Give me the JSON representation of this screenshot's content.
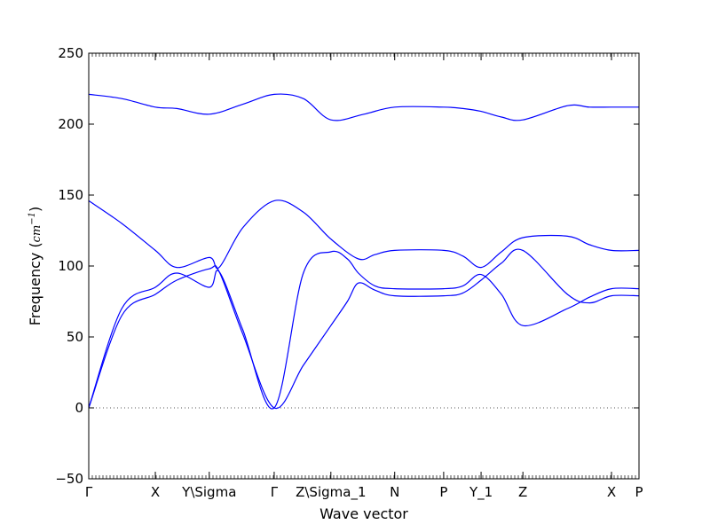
{
  "chart_data": {
    "type": "line",
    "xlabel": "Wave vector",
    "ylabel": {
      "prefix": "Frequency (",
      "unit": "cm",
      "exponent": "−1",
      "suffix": ")"
    },
    "ylim": [
      -50,
      250
    ],
    "yticks": [
      "−50",
      "0",
      "50",
      "100",
      "150",
      "200",
      "250"
    ],
    "ytick_values": [
      -50,
      0,
      50,
      100,
      150,
      200,
      250
    ],
    "xlim": [
      0,
      1
    ],
    "xticks": [
      {
        "label": "Γ",
        "x": 0.0
      },
      {
        "label": "X",
        "x": 0.121
      },
      {
        "label": "Y\\Sigma",
        "x": 0.219
      },
      {
        "label": "Γ",
        "x": 0.337
      },
      {
        "label": "Z\\Sigma_1",
        "x": 0.44
      },
      {
        "label": "N",
        "x": 0.556
      },
      {
        "label": "P",
        "x": 0.645
      },
      {
        "label": "Y_1",
        "x": 0.713
      },
      {
        "label": "Z",
        "x": 0.789
      },
      {
        "label": "X",
        "x": 0.95
      },
      {
        "label": "P",
        "x": 1.0
      }
    ],
    "zero_line": {
      "y": 0,
      "style": "dotted"
    },
    "series_color": "#0000ff",
    "series": [
      {
        "x": [
          0,
          0.06,
          0.121,
          0.16,
          0.219,
          0.28,
          0.337,
          0.39,
          0.44,
          0.5,
          0.556,
          0.645,
          0.68,
          0.713,
          0.75,
          0.789,
          0.87,
          0.91,
          0.95,
          1.0
        ],
        "y": [
          221,
          218,
          212,
          211,
          207,
          214,
          221,
          218,
          203,
          207,
          212,
          212,
          211,
          209,
          205,
          203,
          213,
          212,
          212,
          212
        ]
      },
      {
        "x": [
          0,
          0.06,
          0.121,
          0.16,
          0.219,
          0.237,
          0.28,
          0.337,
          0.39,
          0.44,
          0.49,
          0.52,
          0.556,
          0.645,
          0.68,
          0.713,
          0.75,
          0.789,
          0.87,
          0.91,
          0.95,
          1.0
        ],
        "y": [
          146,
          130,
          111,
          99,
          106,
          99,
          127,
          146,
          138,
          119,
          105,
          108,
          111,
          111,
          107,
          99,
          110,
          120,
          121,
          115,
          111,
          111
        ]
      },
      {
        "x": [
          0,
          0.06,
          0.121,
          0.16,
          0.219,
          0.237,
          0.28,
          0.337,
          0.39,
          0.44,
          0.47,
          0.49,
          0.52,
          0.556,
          0.645,
          0.68,
          0.713,
          0.75,
          0.789,
          0.87,
          0.91,
          0.95,
          1.0
        ],
        "y": [
          0,
          70,
          85,
          95,
          85,
          96,
          55,
          0,
          95,
          110,
          105,
          95,
          86,
          84,
          84,
          86,
          94,
          80,
          58,
          70,
          78,
          84,
          84
        ]
      },
      {
        "x": [
          0,
          0.06,
          0.121,
          0.16,
          0.219,
          0.237,
          0.28,
          0.337,
          0.39,
          0.44,
          0.47,
          0.49,
          0.52,
          0.556,
          0.645,
          0.68,
          0.713,
          0.75,
          0.789,
          0.87,
          0.91,
          0.95,
          1.0
        ],
        "y": [
          0,
          65,
          80,
          90,
          98,
          96,
          52,
          0,
          30,
          58,
          75,
          88,
          83,
          79,
          79,
          81,
          90,
          102,
          111,
          80,
          74,
          79,
          79
        ]
      }
    ]
  }
}
